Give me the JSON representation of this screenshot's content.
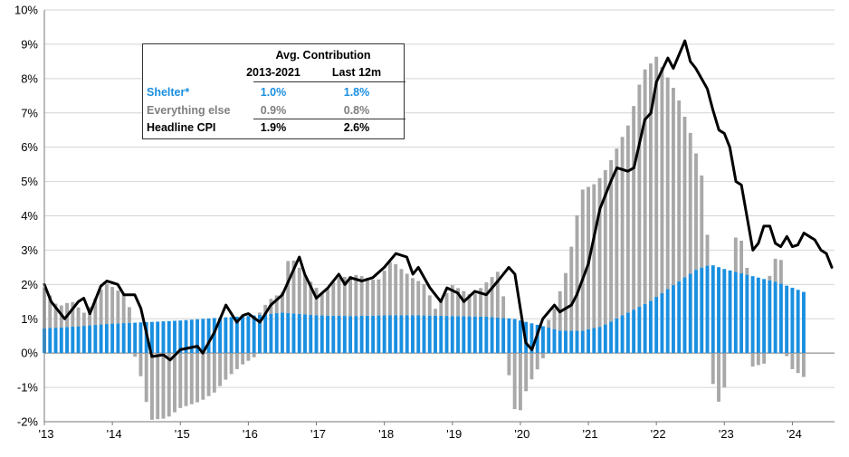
{
  "chart_data": {
    "type": "bar",
    "subtype": "stacked bar with line overlay",
    "y_unit": "%",
    "ylim": [
      -2,
      10
    ],
    "yticks": [
      "10%",
      "9%",
      "8%",
      "7%",
      "6%",
      "5%",
      "4%",
      "3%",
      "2%",
      "1%",
      "0%",
      "-1%",
      "-2%"
    ],
    "xlim": [
      2013.0,
      2024.17
    ],
    "xticks": [
      "'13",
      "'14",
      "'15",
      "'16",
      "'17",
      "'18",
      "'19",
      "'20",
      "'21",
      "'22",
      "'23",
      "'24"
    ],
    "grid": true,
    "colors": {
      "shelter": "#1a8fe0",
      "everything_else": "#a8a8a8",
      "headline": "#000000"
    },
    "series": [
      {
        "key": "shelter",
        "name": "Shelter*",
        "kind": "bar",
        "points": [
          [
            2013.0,
            0.72
          ],
          [
            2013.5,
            0.78
          ],
          [
            2014.0,
            0.86
          ],
          [
            2014.5,
            0.9
          ],
          [
            2015.0,
            0.95
          ],
          [
            2015.5,
            1.02
          ],
          [
            2016.0,
            1.08
          ],
          [
            2016.5,
            1.18
          ],
          [
            2017.0,
            1.1
          ],
          [
            2017.5,
            1.08
          ],
          [
            2018.0,
            1.1
          ],
          [
            2018.5,
            1.1
          ],
          [
            2019.0,
            1.08
          ],
          [
            2019.5,
            1.06
          ],
          [
            2019.9,
            1.0
          ],
          [
            2020.3,
            0.8
          ],
          [
            2020.6,
            0.65
          ],
          [
            2020.9,
            0.65
          ],
          [
            2021.2,
            0.78
          ],
          [
            2021.5,
            1.1
          ],
          [
            2021.9,
            1.5
          ],
          [
            2022.3,
            2.05
          ],
          [
            2022.6,
            2.45
          ],
          [
            2022.8,
            2.58
          ],
          [
            2023.0,
            2.45
          ],
          [
            2023.4,
            2.25
          ],
          [
            2023.8,
            2.05
          ],
          [
            2024.17,
            1.78
          ]
        ]
      },
      {
        "key": "everything_else",
        "name": "Everything else",
        "kind": "bar",
        "points": [
          [
            2013.0,
            1.2
          ],
          [
            2013.2,
            0.6
          ],
          [
            2013.4,
            0.75
          ],
          [
            2013.6,
            0.35
          ],
          [
            2013.9,
            1.2
          ],
          [
            2014.2,
            0.8
          ],
          [
            2014.45,
            -0.9
          ],
          [
            2014.55,
            -1.95
          ],
          [
            2014.8,
            -1.9
          ],
          [
            2015.0,
            -1.6
          ],
          [
            2015.3,
            -1.4
          ],
          [
            2015.5,
            -1.15
          ],
          [
            2015.7,
            -0.7
          ],
          [
            2015.9,
            -0.35
          ],
          [
            2016.1,
            -0.1
          ],
          [
            2016.3,
            0.4
          ],
          [
            2016.5,
            0.6
          ],
          [
            2016.6,
            1.7
          ],
          [
            2016.9,
            1.0
          ],
          [
            2017.1,
            0.6
          ],
          [
            2017.3,
            1.1
          ],
          [
            2017.6,
            1.2
          ],
          [
            2017.9,
            1.0
          ],
          [
            2018.1,
            1.6
          ],
          [
            2018.4,
            1.1
          ],
          [
            2018.6,
            0.9
          ],
          [
            2018.75,
            0.2
          ],
          [
            2019.0,
            0.9
          ],
          [
            2019.3,
            0.6
          ],
          [
            2019.6,
            1.2
          ],
          [
            2019.7,
            1.4
          ],
          [
            2019.85,
            -0.9
          ],
          [
            2019.95,
            -2.0
          ],
          [
            2020.1,
            -1.0
          ],
          [
            2020.3,
            -0.3
          ],
          [
            2020.5,
            0.6
          ],
          [
            2020.7,
            1.9
          ],
          [
            2020.9,
            4.1
          ],
          [
            2021.1,
            4.2
          ],
          [
            2021.3,
            4.6
          ],
          [
            2021.6,
            5.5
          ],
          [
            2021.8,
            6.8
          ],
          [
            2022.0,
            7.0
          ],
          [
            2022.3,
            5.5
          ],
          [
            2022.5,
            4.1
          ],
          [
            2022.7,
            2.4
          ],
          [
            2022.8,
            -0.6
          ],
          [
            2022.9,
            -1.5
          ],
          [
            2023.0,
            -1.0
          ],
          [
            2023.2,
            1.4
          ],
          [
            2023.4,
            -0.4
          ],
          [
            2023.6,
            -0.3
          ],
          [
            2023.8,
            1.0
          ],
          [
            2023.95,
            -0.4
          ],
          [
            2024.17,
            -0.7
          ]
        ]
      },
      {
        "key": "headline",
        "name": "Headline CPI",
        "kind": "line",
        "points": [
          [
            2013.0,
            2.0
          ],
          [
            2013.1,
            1.5
          ],
          [
            2013.3,
            1.0
          ],
          [
            2013.5,
            1.5
          ],
          [
            2013.58,
            1.6
          ],
          [
            2013.67,
            1.15
          ],
          [
            2013.83,
            1.95
          ],
          [
            2013.92,
            2.1
          ],
          [
            2014.08,
            2.0
          ],
          [
            2014.17,
            1.7
          ],
          [
            2014.33,
            1.7
          ],
          [
            2014.42,
            1.3
          ],
          [
            2014.58,
            -0.1
          ],
          [
            2014.75,
            -0.05
          ],
          [
            2014.85,
            -0.2
          ],
          [
            2015.0,
            0.1
          ],
          [
            2015.25,
            0.2
          ],
          [
            2015.33,
            0.0
          ],
          [
            2015.5,
            0.6
          ],
          [
            2015.67,
            1.4
          ],
          [
            2015.83,
            0.9
          ],
          [
            2015.92,
            1.1
          ],
          [
            2016.0,
            1.15
          ],
          [
            2016.17,
            0.9
          ],
          [
            2016.33,
            1.4
          ],
          [
            2016.5,
            1.7
          ],
          [
            2016.67,
            2.45
          ],
          [
            2016.75,
            2.8
          ],
          [
            2016.83,
            2.3
          ],
          [
            2017.0,
            1.6
          ],
          [
            2017.17,
            1.9
          ],
          [
            2017.33,
            2.3
          ],
          [
            2017.42,
            2.0
          ],
          [
            2017.5,
            2.2
          ],
          [
            2017.67,
            2.1
          ],
          [
            2017.83,
            2.2
          ],
          [
            2018.0,
            2.5
          ],
          [
            2018.17,
            2.9
          ],
          [
            2018.33,
            2.8
          ],
          [
            2018.42,
            2.3
          ],
          [
            2018.5,
            2.5
          ],
          [
            2018.67,
            1.9
          ],
          [
            2018.83,
            1.5
          ],
          [
            2018.92,
            1.9
          ],
          [
            2019.08,
            1.75
          ],
          [
            2019.17,
            1.5
          ],
          [
            2019.33,
            1.8
          ],
          [
            2019.5,
            1.7
          ],
          [
            2019.67,
            2.1
          ],
          [
            2019.75,
            2.3
          ],
          [
            2019.83,
            2.5
          ],
          [
            2019.92,
            2.3
          ],
          [
            2020.08,
            0.3
          ],
          [
            2020.17,
            0.1
          ],
          [
            2020.33,
            1.0
          ],
          [
            2020.5,
            1.4
          ],
          [
            2020.58,
            1.2
          ],
          [
            2020.75,
            1.4
          ],
          [
            2020.83,
            1.7
          ],
          [
            2021.0,
            2.6
          ],
          [
            2021.17,
            4.2
          ],
          [
            2021.33,
            5.0
          ],
          [
            2021.42,
            5.4
          ],
          [
            2021.58,
            5.3
          ],
          [
            2021.67,
            5.4
          ],
          [
            2021.83,
            6.8
          ],
          [
            2021.92,
            7.0
          ],
          [
            2022.0,
            7.9
          ],
          [
            2022.17,
            8.6
          ],
          [
            2022.25,
            8.3
          ],
          [
            2022.42,
            9.1
          ],
          [
            2022.5,
            8.5
          ],
          [
            2022.58,
            8.3
          ],
          [
            2022.75,
            7.7
          ],
          [
            2022.83,
            7.1
          ],
          [
            2022.92,
            6.5
          ],
          [
            2023.0,
            6.4
          ],
          [
            2023.08,
            6.0
          ],
          [
            2023.17,
            5.0
          ],
          [
            2023.25,
            4.9
          ],
          [
            2023.42,
            3.0
          ],
          [
            2023.5,
            3.2
          ],
          [
            2023.58,
            3.7
          ],
          [
            2023.67,
            3.7
          ],
          [
            2023.75,
            3.2
          ],
          [
            2023.83,
            3.1
          ],
          [
            2023.92,
            3.4
          ],
          [
            2024.0,
            3.1
          ],
          [
            2024.08,
            3.15
          ],
          [
            2024.17,
            3.5
          ],
          [
            2024.25,
            3.4
          ],
          [
            2024.33,
            3.3
          ],
          [
            2024.42,
            3.0
          ],
          [
            2024.5,
            2.9
          ],
          [
            2024.58,
            2.5
          ]
        ]
      }
    ],
    "legend_table": {
      "title": "Avg. Contribution",
      "columns": [
        "2013-2021",
        "Last 12m"
      ],
      "rows": [
        {
          "label": "Shelter*",
          "v1": "1.0%",
          "v2": "1.8%",
          "color": "#1a8fe0"
        },
        {
          "label": "Everything else",
          "v1": "0.9%",
          "v2": "0.8%",
          "color": "#7f7f7f"
        },
        {
          "label": "Headline CPI",
          "v1": "1.9%",
          "v2": "2.6%",
          "color": "#000000"
        }
      ]
    }
  }
}
